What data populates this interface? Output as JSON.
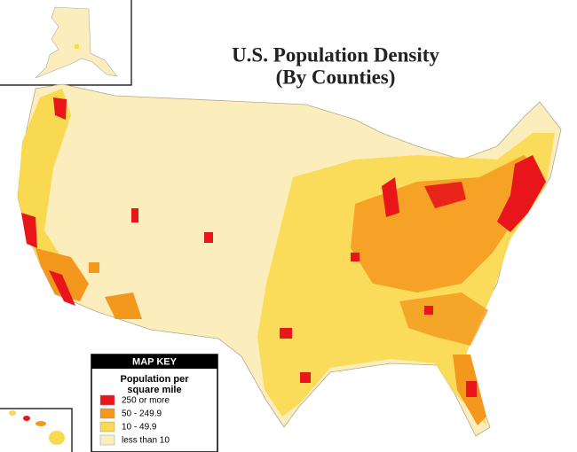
{
  "title": "U.S. Population Density",
  "subtitle": "(By Counties)",
  "map_key": {
    "title": "MAP KEY",
    "heading": [
      "Population per",
      "square mile"
    ],
    "items": [
      {
        "label": "250 or more",
        "color": "#e8161b"
      },
      {
        "label": "50 - 249.9",
        "color": "#f3981d"
      },
      {
        "label": "10 - 49.9",
        "color": "#f9d94f"
      },
      {
        "label": "less than 10",
        "color": "#fbeebc"
      }
    ]
  }
}
